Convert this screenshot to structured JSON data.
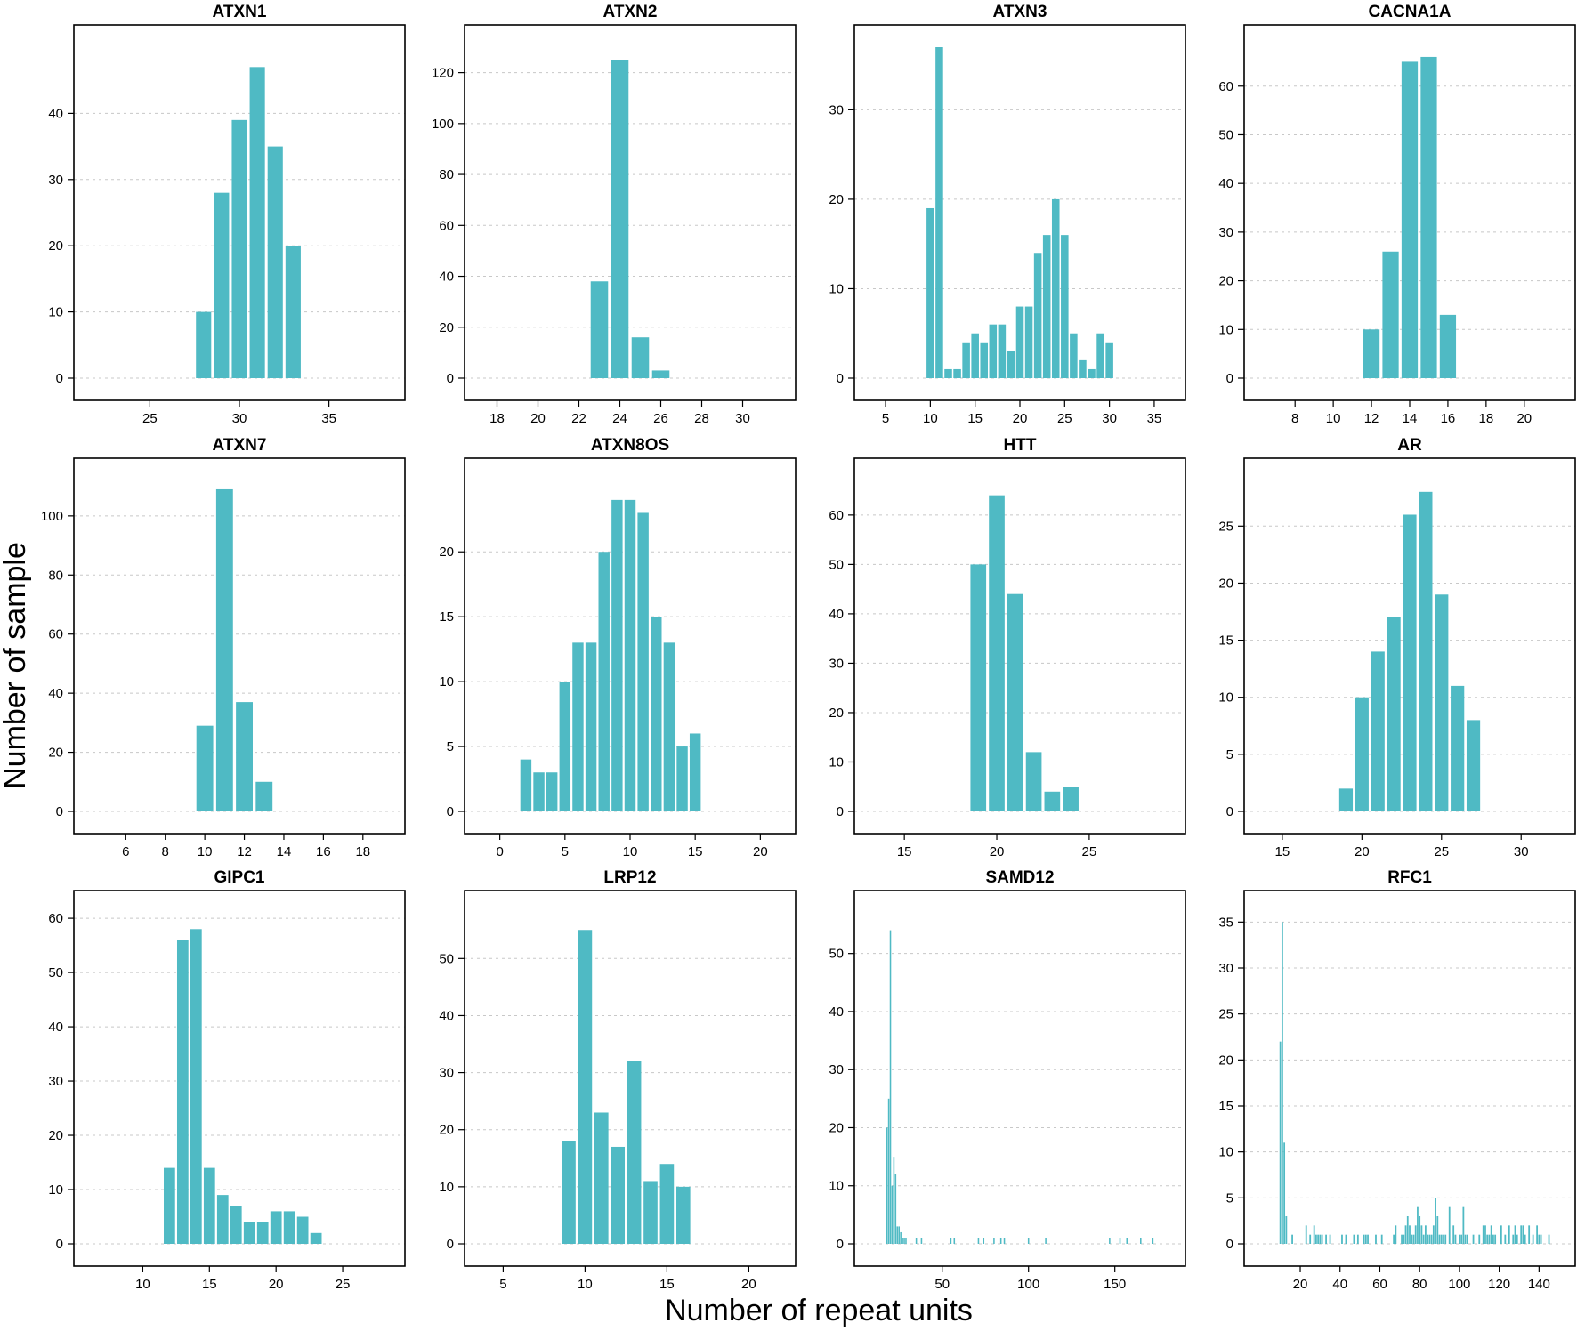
{
  "figure": {
    "ylabel": "Number of sample",
    "xlabel": "Number of repeat units",
    "bar_color": "#4fbac4",
    "grid": true
  },
  "chart_data": [
    {
      "type": "bar",
      "title": "ATXN1",
      "xlim": [
        22,
        38
      ],
      "ylim": [
        0,
        50
      ],
      "xticks": [
        25,
        30,
        35
      ],
      "yticks": [
        0,
        10,
        20,
        30,
        40
      ],
      "x": [
        28,
        29,
        30,
        31,
        32,
        33
      ],
      "values": [
        10,
        28,
        39,
        47,
        35,
        20
      ]
    },
    {
      "type": "bar",
      "title": "ATXN2",
      "xlim": [
        17.5,
        31.5
      ],
      "ylim": [
        0,
        130
      ],
      "xticks": [
        18,
        20,
        22,
        24,
        26,
        28,
        30
      ],
      "yticks": [
        0,
        20,
        40,
        60,
        80,
        100,
        120
      ],
      "x": [
        23,
        24,
        25,
        26
      ],
      "values": [
        38,
        125,
        16,
        3
      ]
    },
    {
      "type": "bar",
      "title": "ATXN3",
      "xlim": [
        4,
        36
      ],
      "ylim": [
        0,
        37
      ],
      "xticks": [
        5,
        10,
        15,
        20,
        25,
        30,
        35
      ],
      "yticks": [
        0,
        10,
        20,
        30
      ],
      "x": [
        10,
        11,
        12,
        13,
        14,
        15,
        16,
        17,
        18,
        19,
        20,
        21,
        22,
        23,
        24,
        25,
        26,
        27,
        28,
        29,
        30
      ],
      "values": [
        19,
        37,
        1,
        1,
        4,
        5,
        4,
        6,
        6,
        3,
        8,
        8,
        14,
        16,
        20,
        16,
        5,
        2,
        1,
        5,
        4
      ]
    },
    {
      "type": "bar",
      "title": "CACNA1A",
      "xlim": [
        6.5,
        21.5
      ],
      "ylim": [
        0,
        68
      ],
      "xticks": [
        8,
        10,
        12,
        14,
        16,
        18,
        20
      ],
      "yticks": [
        0,
        10,
        20,
        30,
        40,
        50,
        60
      ],
      "x": [
        12,
        13,
        14,
        15,
        16
      ],
      "values": [
        10,
        26,
        65,
        66,
        13
      ]
    },
    {
      "type": "bar",
      "title": "ATXN7",
      "xlim": [
        4.5,
        19
      ],
      "ylim": [
        0,
        112
      ],
      "xticks": [
        6,
        8,
        10,
        12,
        14,
        16,
        18
      ],
      "yticks": [
        0,
        20,
        40,
        60,
        80,
        100
      ],
      "x": [
        10,
        11,
        12,
        13
      ],
      "values": [
        29,
        109,
        37,
        10
      ]
    },
    {
      "type": "bar",
      "title": "ATXN8OS",
      "xlim": [
        -1,
        21
      ],
      "ylim": [
        0,
        25.5
      ],
      "xticks": [
        0,
        5,
        10,
        15,
        20
      ],
      "yticks": [
        0,
        5,
        10,
        15,
        20
      ],
      "x": [
        2,
        3,
        4,
        5,
        6,
        7,
        8,
        9,
        10,
        11,
        12,
        13,
        14,
        15
      ],
      "values": [
        4,
        3,
        3,
        10,
        13,
        13,
        20,
        24,
        24,
        23,
        15,
        13,
        5,
        6
      ]
    },
    {
      "type": "bar",
      "title": "HTT",
      "xlim": [
        13.5,
        29
      ],
      "ylim": [
        0,
        67
      ],
      "xticks": [
        15,
        20,
        25
      ],
      "yticks": [
        0,
        10,
        20,
        30,
        40,
        50,
        60
      ],
      "x": [
        19,
        20,
        21,
        22,
        23,
        24
      ],
      "values": [
        50,
        64,
        44,
        12,
        4,
        5
      ]
    },
    {
      "type": "bar",
      "title": "AR",
      "xlim": [
        14,
        32
      ],
      "ylim": [
        0,
        29
      ],
      "xticks": [
        15,
        20,
        25,
        30
      ],
      "yticks": [
        0,
        5,
        10,
        15,
        20,
        25
      ],
      "x": [
        19,
        20,
        21,
        22,
        23,
        24,
        25,
        26,
        27
      ],
      "values": [
        2,
        10,
        14,
        17,
        26,
        28,
        19,
        11,
        8
      ]
    },
    {
      "type": "bar",
      "title": "GIPC1",
      "xlim": [
        6.5,
        28
      ],
      "ylim": [
        0,
        61
      ],
      "xticks": [
        10,
        15,
        20,
        25
      ],
      "yticks": [
        0,
        10,
        20,
        30,
        40,
        50,
        60
      ],
      "x": [
        12,
        13,
        14,
        15,
        16,
        17,
        18,
        19,
        20,
        21,
        22,
        23
      ],
      "values": [
        14,
        56,
        58,
        14,
        9,
        7,
        4,
        4,
        6,
        6,
        5,
        2
      ]
    },
    {
      "type": "bar",
      "title": "LRP12",
      "xlim": [
        4,
        21.5
      ],
      "ylim": [
        0,
        58
      ],
      "xticks": [
        5,
        10,
        15,
        20
      ],
      "yticks": [
        0,
        10,
        20,
        30,
        40,
        50
      ],
      "x": [
        9,
        10,
        11,
        12,
        13,
        14,
        15,
        16
      ],
      "values": [
        18,
        55,
        23,
        17,
        32,
        11,
        14,
        10
      ]
    },
    {
      "type": "bar",
      "title": "SAMD12",
      "xlim": [
        12,
        178
      ],
      "ylim": [
        0,
        57
      ],
      "xticks": [
        50,
        100,
        150
      ],
      "yticks": [
        0,
        10,
        20,
        30,
        40,
        50
      ],
      "bar_width": 0.8,
      "x": [
        18,
        19,
        20,
        21,
        22,
        23,
        24,
        25,
        26,
        27,
        28,
        29,
        35,
        38,
        55,
        57,
        71,
        74,
        80,
        84,
        86,
        100,
        110,
        147,
        153,
        157,
        165,
        172
      ],
      "values": [
        20,
        25,
        54,
        10,
        15,
        12,
        3,
        3,
        2,
        1,
        1,
        1,
        1,
        1,
        1,
        1,
        1,
        1,
        1,
        1,
        1,
        1,
        1,
        1,
        1,
        1,
        1,
        1
      ]
    },
    {
      "type": "bar",
      "title": "RFC1",
      "xlim": [
        3,
        147
      ],
      "ylim": [
        0,
        36
      ],
      "xticks": [
        20,
        40,
        60,
        80,
        100,
        120,
        140
      ],
      "yticks": [
        0,
        5,
        10,
        15,
        20,
        25,
        30,
        35
      ],
      "bar_width": 0.8,
      "x": [
        10,
        11,
        12,
        13,
        16,
        23,
        25,
        27,
        28,
        29,
        30,
        31,
        33,
        35,
        41,
        43,
        47,
        49,
        52,
        53,
        54,
        58,
        61,
        67,
        68,
        71,
        72,
        73,
        74,
        75,
        76,
        77,
        78,
        79,
        80,
        81,
        82,
        83,
        84,
        85,
        86,
        87,
        88,
        89,
        90,
        91,
        92,
        93,
        95,
        97,
        98,
        100,
        101,
        102,
        103,
        104,
        107,
        110,
        112,
        113,
        114,
        115,
        116,
        117,
        118,
        121,
        123,
        125,
        127,
        128,
        129,
        131,
        132,
        133,
        135,
        137,
        139,
        140,
        141,
        145
      ],
      "values": [
        22,
        35,
        11,
        3,
        1,
        2,
        1,
        2,
        1,
        1,
        1,
        1,
        1,
        1,
        1,
        1,
        1,
        1,
        1,
        1,
        1,
        1,
        1,
        1,
        2,
        1,
        1,
        2,
        3,
        2,
        1,
        1,
        2,
        4,
        3,
        2,
        1,
        2,
        1,
        1,
        1,
        2,
        5,
        3,
        1,
        1,
        1,
        1,
        4,
        2,
        1,
        1,
        1,
        4,
        1,
        1,
        1,
        1,
        2,
        2,
        1,
        1,
        2,
        1,
        1,
        2,
        1,
        2,
        1,
        2,
        1,
        2,
        2,
        1,
        2,
        1,
        2,
        1,
        1,
        1
      ]
    }
  ]
}
